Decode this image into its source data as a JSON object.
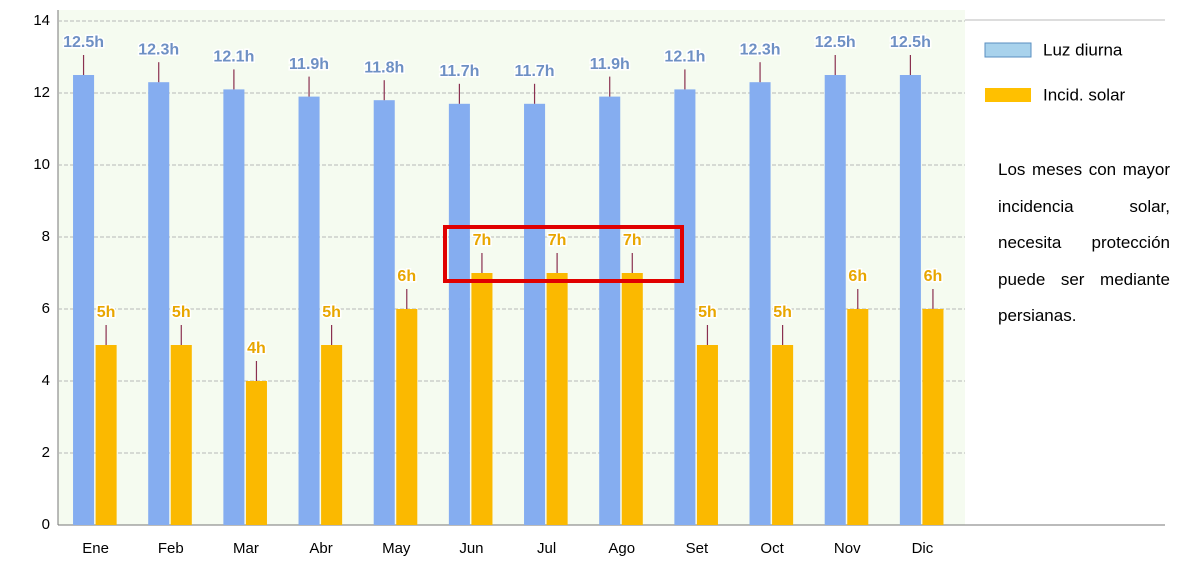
{
  "chart_data": {
    "type": "bar",
    "categories": [
      "Ene",
      "Feb",
      "Mar",
      "Abr",
      "May",
      "Jun",
      "Jul",
      "Ago",
      "Set",
      "Oct",
      "Nov",
      "Dic"
    ],
    "series": [
      {
        "name": "Luz diurna",
        "color": "#85adf0",
        "legend_color": "#a8d2ec",
        "values": [
          12.5,
          12.3,
          12.1,
          11.9,
          11.8,
          11.7,
          11.7,
          11.9,
          12.1,
          12.3,
          12.5,
          12.5
        ],
        "value_labels": [
          "12.5h",
          "12.3h",
          "12.1h",
          "11.9h",
          "11.8h",
          "11.7h",
          "11.7h",
          "11.9h",
          "12.1h",
          "12.3h",
          "12.5h",
          "12.5h"
        ]
      },
      {
        "name": "Incid. solar",
        "color": "#fbb900",
        "legend_color": "#ffc000",
        "values": [
          5,
          5,
          4,
          5,
          6,
          7,
          7,
          7,
          5,
          5,
          6,
          6
        ],
        "value_labels": [
          "5h",
          "5h",
          "4h",
          "5h",
          "6h",
          "7h",
          "7h",
          "7h",
          "5h",
          "5h",
          "6h",
          "6h"
        ]
      }
    ],
    "ylim": [
      0,
      14
    ],
    "yticks": [
      0,
      2,
      4,
      6,
      8,
      10,
      12,
      14
    ],
    "grid": true,
    "annotation": "Los meses con mayor incidencia solar, necesita protección puede ser mediante persianas."
  }
}
